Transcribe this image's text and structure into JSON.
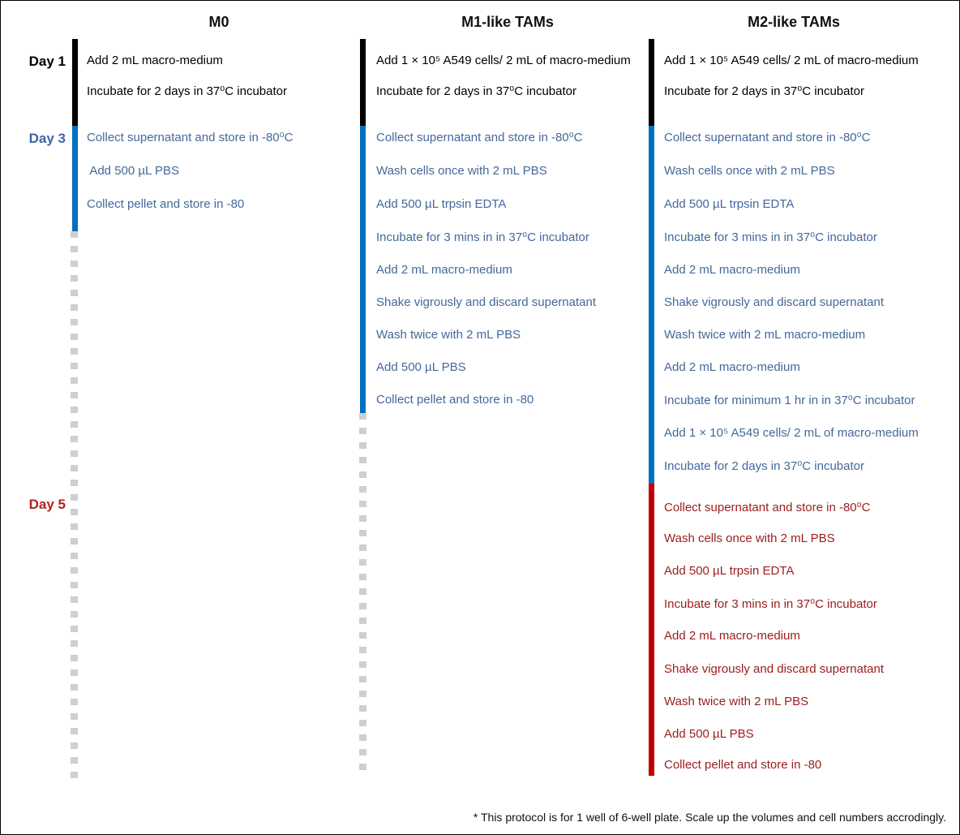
{
  "columns": [
    {
      "title": "M0",
      "steps": [
        {
          "text": "Add 2 mL macro-medium",
          "phase": "day1"
        },
        {
          "text": "Incubate for 2 days in 37⁰C incubator",
          "phase": "day1"
        },
        {
          "text": "Collect supernatant and store in -80⁰C",
          "phase": "day3"
        },
        {
          "text": " Add 500 µL PBS",
          "phase": "day3"
        },
        {
          "text": "Collect pellet and store in -80",
          "phase": "day3"
        }
      ]
    },
    {
      "title": "M1-like TAMs",
      "steps": [
        {
          "text": "Add 1 × 10⁵ A549 cells/ 2 mL of macro-medium",
          "phase": "day1"
        },
        {
          "text": "Incubate for 2 days in 37⁰C incubator",
          "phase": "day1"
        },
        {
          "text": "Collect supernatant and store in -80⁰C",
          "phase": "day3"
        },
        {
          "text": "Wash cells once with 2 mL PBS",
          "phase": "day3"
        },
        {
          "text": "Add 500 µL trpsin EDTA",
          "phase": "day3"
        },
        {
          "text": "Incubate for 3 mins in in 37⁰C incubator",
          "phase": "day3"
        },
        {
          "text": "Add 2 mL macro-medium",
          "phase": "day3"
        },
        {
          "text": "Shake vigrously and discard supernatant",
          "phase": "day3"
        },
        {
          "text": "Wash twice with 2 mL PBS",
          "phase": "day3"
        },
        {
          "text": "Add 500 µL PBS",
          "phase": "day3"
        },
        {
          "text": "Collect pellet and store in -80",
          "phase": "day3"
        }
      ]
    },
    {
      "title": "M2-like TAMs",
      "steps": [
        {
          "text": "Add 1 × 10⁵ A549 cells/ 2 mL of macro-medium",
          "phase": "day1"
        },
        {
          "text": "Incubate for 2 days in 37⁰C incubator",
          "phase": "day1"
        },
        {
          "text": "Collect supernatant and store in -80⁰C",
          "phase": "day3"
        },
        {
          "text": "Wash cells once with 2 mL PBS",
          "phase": "day3"
        },
        {
          "text": "Add 500 µL trpsin EDTA",
          "phase": "day3"
        },
        {
          "text": "Incubate for 3 mins in in 37⁰C incubator",
          "phase": "day3"
        },
        {
          "text": "Add 2 mL macro-medium",
          "phase": "day3"
        },
        {
          "text": "Shake vigrously and discard supernatant",
          "phase": "day3"
        },
        {
          "text": "Wash twice with 2 mL macro-medium",
          "phase": "day3"
        },
        {
          "text": "Add 2 mL macro-medium",
          "phase": "day3"
        },
        {
          "text": "Incubate for minimum 1 hr in in 37⁰C incubator",
          "phase": "day3"
        },
        {
          "text": "Add 1 × 10⁵ A549 cells/ 2 mL of macro-medium",
          "phase": "day3"
        },
        {
          "text": "Incubate for 2 days in 37⁰C incubator",
          "phase": "day3"
        },
        {
          "text": "Collect supernatant and store in -80⁰C",
          "phase": "day5"
        },
        {
          "text": "Wash cells once with 2 mL PBS",
          "phase": "day5"
        },
        {
          "text": "Add 500 µL trpsin EDTA",
          "phase": "day5"
        },
        {
          "text": "Incubate for 3 mins in in 37⁰C incubator",
          "phase": "day5"
        },
        {
          "text": "Add 2 mL macro-medium",
          "phase": "day5"
        },
        {
          "text": "Shake vigrously and discard supernatant",
          "phase": "day5"
        },
        {
          "text": "Wash twice with 2 mL PBS",
          "phase": "day5"
        },
        {
          "text": "Add 500 µL PBS",
          "phase": "day5"
        },
        {
          "text": "Collect pellet and store in -80",
          "phase": "day5"
        }
      ]
    }
  ],
  "days": [
    {
      "label": "Day 1",
      "phase": "day1"
    },
    {
      "label": "Day 3",
      "phase": "day3"
    },
    {
      "label": "Day 5",
      "phase": "day5"
    }
  ],
  "colors": {
    "day1": "#000000",
    "day3_bar": "#0070c0",
    "day3_text": "#44689a",
    "day3_label": "#3d64a8",
    "day5_bar": "#c00000",
    "day5_text": "#9b1c1c",
    "day5_label": "#b22222",
    "dash": "#cfcfcf"
  },
  "footnote": "* This protocol is for 1 well of 6-well plate. Scale up the volumes and cell numbers accrodingly."
}
